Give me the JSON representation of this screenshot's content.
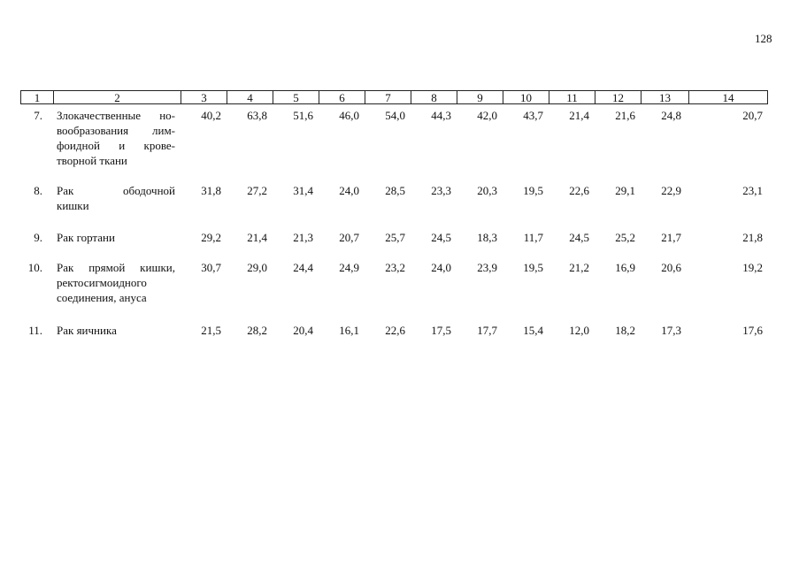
{
  "page_number": "128",
  "table": {
    "header": [
      "1",
      "2",
      "3",
      "4",
      "5",
      "6",
      "7",
      "8",
      "9",
      "10",
      "11",
      "12",
      "13",
      "14"
    ],
    "rows": [
      {
        "number": "7.",
        "name": [
          "Злокачественные но-",
          "вообразования лим-",
          "фоидной и крове-",
          "творной ткани"
        ],
        "values": [
          "40,2",
          "63,8",
          "51,6",
          "46,0",
          "54,0",
          "44,3",
          "42,0",
          "43,7",
          "21,4",
          "21,6",
          "24,8",
          "20,7"
        ]
      },
      {
        "number": "8.",
        "name": [
          "Рак ободочной",
          "кишки"
        ],
        "values": [
          "31,8",
          "27,2",
          "31,4",
          "24,0",
          "28,5",
          "23,3",
          "20,3",
          "19,5",
          "22,6",
          "29,1",
          "22,9",
          "23,1"
        ]
      },
      {
        "number": "9.",
        "name": [
          "Рак гортани"
        ],
        "values": [
          "29,2",
          "21,4",
          "21,3",
          "20,7",
          "25,7",
          "24,5",
          "18,3",
          "11,7",
          "24,5",
          "25,2",
          "21,7",
          "21,8"
        ]
      },
      {
        "number": "10.",
        "name": [
          "Рак прямой кишки,",
          "ректосигмоидного",
          "соединения, ануса"
        ],
        "values": [
          "30,7",
          "29,0",
          "24,4",
          "24,9",
          "23,2",
          "24,0",
          "23,9",
          "19,5",
          "21,2",
          "16,9",
          "20,6",
          "19,2"
        ]
      },
      {
        "number": "11.",
        "name": [
          "Рак яичника"
        ],
        "values": [
          "21,5",
          "28,2",
          "20,4",
          "16,1",
          "22,6",
          "17,5",
          "17,7",
          "15,4",
          "12,0",
          "18,2",
          "17,3",
          "17,6"
        ]
      }
    ]
  }
}
